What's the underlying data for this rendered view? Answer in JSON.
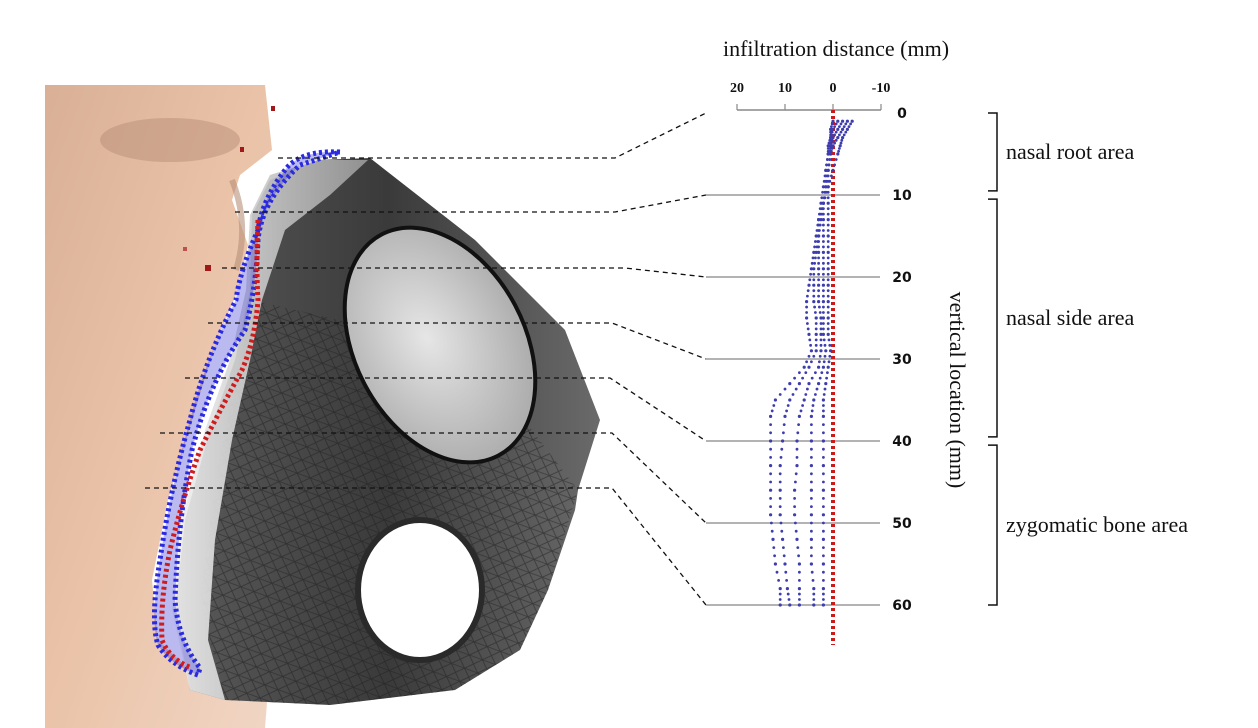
{
  "chart_data": {
    "type": "scatter",
    "x_title": "infiltration  distance (mm)",
    "y_title": "vertical location (mm)",
    "x_ticks": [
      "20",
      "10",
      "0",
      "-10"
    ],
    "x_tick_values": [
      20,
      10,
      0,
      -10
    ],
    "y_ticks": [
      "0",
      "10",
      "20",
      "30",
      "40",
      "50",
      "60"
    ],
    "y_tick_values": [
      0,
      10,
      20,
      30,
      40,
      50,
      60
    ],
    "xlim": [
      20,
      -10
    ],
    "ylim": [
      0,
      60
    ],
    "zero_line": {
      "x": 0,
      "color": "#cc1a1a"
    },
    "point_color": "#3d3dae",
    "series": [
      {
        "points": [
          [
            -4,
            1
          ],
          [
            -3,
            2
          ],
          [
            -2,
            3
          ],
          [
            -1.5,
            4
          ],
          [
            -1,
            5
          ],
          [
            0,
            7
          ],
          [
            1,
            9
          ],
          [
            2,
            11
          ],
          [
            3,
            13
          ],
          [
            3.5,
            15
          ],
          [
            4,
            17
          ],
          [
            4.5,
            19
          ],
          [
            5,
            21
          ],
          [
            5.5,
            23
          ],
          [
            5.5,
            25
          ],
          [
            5,
            27
          ],
          [
            4.5,
            29
          ],
          [
            6,
            31
          ],
          [
            9,
            33
          ],
          [
            12,
            35
          ],
          [
            13,
            37
          ],
          [
            13,
            40
          ],
          [
            13,
            43
          ],
          [
            13,
            46
          ],
          [
            13,
            49
          ],
          [
            12.5,
            52
          ],
          [
            12,
            55
          ],
          [
            11,
            58
          ],
          [
            11,
            60
          ]
        ]
      },
      {
        "points": [
          [
            -3,
            1
          ],
          [
            -2,
            2
          ],
          [
            -1,
            3
          ],
          [
            0,
            4
          ],
          [
            0.5,
            5
          ],
          [
            1,
            7
          ],
          [
            1.5,
            9
          ],
          [
            2,
            11
          ],
          [
            2.5,
            13
          ],
          [
            3,
            15
          ],
          [
            3.5,
            17
          ],
          [
            4,
            19
          ],
          [
            4,
            21
          ],
          [
            4,
            23
          ],
          [
            3.5,
            25
          ],
          [
            3.5,
            27
          ],
          [
            3.5,
            29
          ],
          [
            5,
            31
          ],
          [
            7,
            33
          ],
          [
            9,
            35
          ],
          [
            10,
            37
          ],
          [
            10.5,
            40
          ],
          [
            11,
            43
          ],
          [
            11,
            46
          ],
          [
            11,
            49
          ],
          [
            10.5,
            52
          ],
          [
            10,
            55
          ],
          [
            9.5,
            58
          ],
          [
            9,
            60
          ]
        ]
      },
      {
        "points": [
          [
            -2,
            1
          ],
          [
            -1,
            2
          ],
          [
            0,
            3
          ],
          [
            0.5,
            4
          ],
          [
            1,
            5
          ],
          [
            1.5,
            7
          ],
          [
            2,
            9
          ],
          [
            2.5,
            11
          ],
          [
            3,
            13
          ],
          [
            3,
            15
          ],
          [
            3,
            17
          ],
          [
            3,
            19
          ],
          [
            3,
            21
          ],
          [
            3,
            23
          ],
          [
            2.5,
            25
          ],
          [
            2.5,
            27
          ],
          [
            2.5,
            29
          ],
          [
            3,
            31
          ],
          [
            5,
            33
          ],
          [
            6,
            35
          ],
          [
            7,
            37
          ],
          [
            7.5,
            40
          ],
          [
            7.5,
            43
          ],
          [
            8,
            46
          ],
          [
            8,
            49
          ],
          [
            7.5,
            52
          ],
          [
            7,
            55
          ],
          [
            7,
            58
          ],
          [
            7,
            60
          ]
        ]
      },
      {
        "points": [
          [
            -1,
            1
          ],
          [
            0,
            2
          ],
          [
            0.5,
            3
          ],
          [
            1,
            4
          ],
          [
            1,
            5
          ],
          [
            1.5,
            7
          ],
          [
            1.5,
            9
          ],
          [
            2,
            11
          ],
          [
            2,
            13
          ],
          [
            2,
            15
          ],
          [
            2,
            17
          ],
          [
            2,
            19
          ],
          [
            2,
            21
          ],
          [
            2,
            23
          ],
          [
            2,
            25
          ],
          [
            2,
            27
          ],
          [
            1.5,
            29
          ],
          [
            2,
            31
          ],
          [
            3,
            33
          ],
          [
            4,
            35
          ],
          [
            4.5,
            37
          ],
          [
            4.5,
            40
          ],
          [
            4.5,
            43
          ],
          [
            4.5,
            46
          ],
          [
            4.5,
            49
          ],
          [
            4.5,
            52
          ],
          [
            4.5,
            55
          ],
          [
            4,
            58
          ],
          [
            4,
            60
          ]
        ]
      },
      {
        "points": [
          [
            0,
            1
          ],
          [
            0.5,
            2
          ],
          [
            0.5,
            3
          ],
          [
            0.5,
            4
          ],
          [
            0.5,
            5
          ],
          [
            1,
            7
          ],
          [
            1,
            9
          ],
          [
            1,
            11
          ],
          [
            1,
            13
          ],
          [
            1,
            15
          ],
          [
            1,
            17
          ],
          [
            1,
            19
          ],
          [
            1,
            21
          ],
          [
            1,
            23
          ],
          [
            1,
            25
          ],
          [
            1,
            27
          ],
          [
            0.5,
            29
          ],
          [
            1,
            31
          ],
          [
            1.5,
            33
          ],
          [
            2,
            35
          ],
          [
            2,
            37
          ],
          [
            2,
            40
          ],
          [
            2,
            43
          ],
          [
            2,
            46
          ],
          [
            2,
            49
          ],
          [
            2,
            52
          ],
          [
            2,
            55
          ],
          [
            2,
            58
          ],
          [
            2,
            60
          ]
        ]
      }
    ]
  },
  "regions": [
    {
      "label": "nasal root area",
      "from": 0,
      "to": 9.5
    },
    {
      "label": "nasal side area",
      "from": 10.5,
      "to": 39.5
    },
    {
      "label": "zygomatic bone area",
      "from": 40.5,
      "to": 60
    }
  ],
  "colors": {
    "skin": "#eac0a4",
    "mask_dark": "#3e3e3e",
    "mask_light": "#c8c8c8",
    "blue_outline": "#2a2ae0",
    "red_outline": "#d01c1c"
  }
}
